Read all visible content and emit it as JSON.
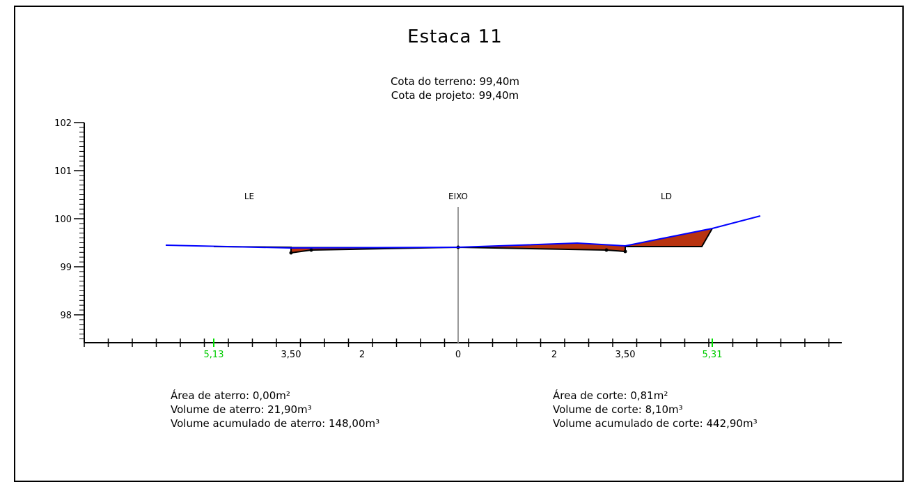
{
  "title": "Estaca 11",
  "cota_terreno": "Cota do terreno: 99,40m",
  "cota_projeto": "Cota de projeto: 99,40m",
  "labels": {
    "left": "LE",
    "center": "EIXO",
    "right": "LD"
  },
  "y_axis": {
    "ticks": [
      "102",
      "101",
      "100",
      "99",
      "98"
    ]
  },
  "x_axis": {
    "labels": [
      "5,13",
      "3,50",
      "2",
      "0",
      "2",
      "3,50",
      "5,31"
    ],
    "highlight_color": "#00dd00"
  },
  "fill_info": {
    "area": "Área de aterro: 0,00m²",
    "volume": "Volume de aterro: 21,90m³",
    "acumulado": "Volume acumulado de aterro: 148,00m³"
  },
  "cut_info": {
    "area": "Área de corte: 0,81m²",
    "volume": "Volume de corte: 8,10m³",
    "acumulado": "Volume acumulado de corte: 442,90m³"
  },
  "colors": {
    "terrain": "#0000ff",
    "cut_fill": "#b83310",
    "axis": "#000000",
    "eixo": "#999999"
  }
}
